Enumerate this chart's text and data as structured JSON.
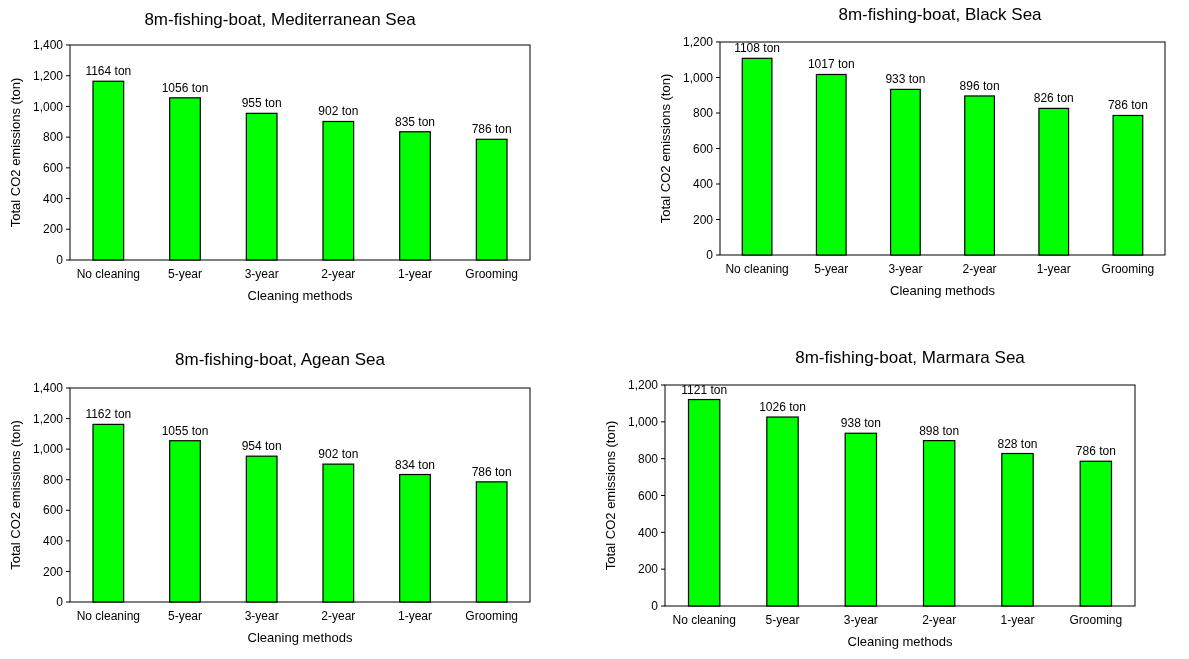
{
  "chart_data": [
    {
      "type": "bar",
      "title": "8m-fishing-boat, Mediterranean Sea",
      "xlabel": "Cleaning methods",
      "ylabel": "Total CO2 emissions (ton)",
      "categories": [
        "No cleaning",
        "5-year",
        "3-year",
        "2-year",
        "1-year",
        "Grooming"
      ],
      "values": [
        1164,
        1056,
        955,
        902,
        835,
        786
      ],
      "value_labels": [
        "1164 ton",
        "1056 ton",
        "955 ton",
        "902 ton",
        "835 ton",
        "786 ton"
      ],
      "color": "#00ff00",
      "ylim": [
        0,
        1400
      ],
      "yticks": [
        0,
        200,
        400,
        600,
        800,
        {
          "value": 1000,
          "label": "1,000"
        },
        {
          "value": 1200,
          "label": "1,200"
        },
        {
          "value": 1400,
          "label": "1,400"
        }
      ]
    },
    {
      "type": "bar",
      "title": "8m-fishing-boat, Black Sea",
      "xlabel": "Cleaning methods",
      "ylabel": "Total CO2 emissions (ton)",
      "categories": [
        "No cleaning",
        "5-year",
        "3-year",
        "2-year",
        "1-year",
        "Grooming"
      ],
      "values": [
        1108,
        1017,
        933,
        896,
        826,
        786
      ],
      "value_labels": [
        "1108 ton",
        "1017 ton",
        "933 ton",
        "896 ton",
        "826 ton",
        "786 ton"
      ],
      "color": "#00ff00",
      "ylim": [
        0,
        1200
      ],
      "yticks": [
        0,
        200,
        400,
        600,
        800,
        {
          "value": 1000,
          "label": "1,000"
        },
        {
          "value": 1200,
          "label": "1,200"
        }
      ]
    },
    {
      "type": "bar",
      "title": "8m-fishing-boat, Agean Sea",
      "xlabel": "Cleaning methods",
      "ylabel": "Total CO2 emissions (ton)",
      "categories": [
        "No cleaning",
        "5-year",
        "3-year",
        "2-year",
        "1-year",
        "Grooming"
      ],
      "values": [
        1162,
        1055,
        954,
        902,
        834,
        786
      ],
      "value_labels": [
        "1162 ton",
        "1055 ton",
        "954 ton",
        "902 ton",
        "834 ton",
        "786 ton"
      ],
      "color": "#00ff00",
      "ylim": [
        0,
        1400
      ],
      "yticks": [
        0,
        200,
        400,
        600,
        800,
        {
          "value": 1000,
          "label": "1,000"
        },
        {
          "value": 1200,
          "label": "1,200"
        },
        {
          "value": 1400,
          "label": "1,400"
        }
      ]
    },
    {
      "type": "bar",
      "title": "8m-fishing-boat, Marmara Sea",
      "xlabel": "Cleaning methods",
      "ylabel": "Total CO2 emissions (ton)",
      "categories": [
        "No cleaning",
        "5-year",
        "3-year",
        "2-year",
        "1-year",
        "Grooming"
      ],
      "values": [
        1121,
        1026,
        938,
        898,
        828,
        786
      ],
      "value_labels": [
        "1121 ton",
        "1026 ton",
        "938 ton",
        "898 ton",
        "828 ton",
        "786 ton"
      ],
      "color": "#00ff00",
      "ylim": [
        0,
        1200
      ],
      "yticks": [
        0,
        200,
        400,
        600,
        800,
        {
          "value": 1000,
          "label": "1,000"
        },
        {
          "value": 1200,
          "label": "1,200"
        }
      ]
    }
  ]
}
